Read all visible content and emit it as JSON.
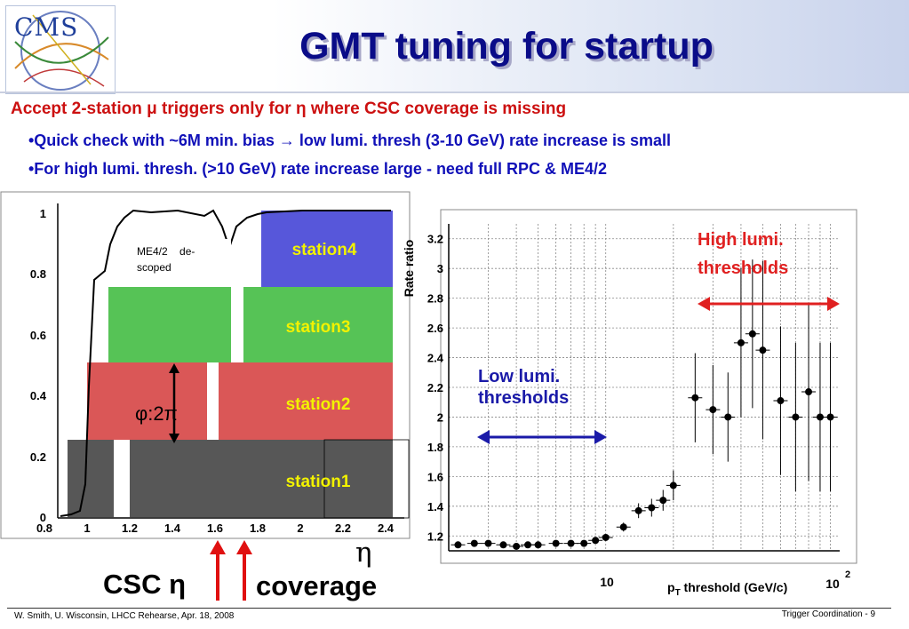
{
  "header": {
    "logo_text": "CMS",
    "title": "GMT tuning for startup"
  },
  "bullets": {
    "main": "Accept 2-station μ triggers only for η where CSC coverage is missing",
    "sub1": "•Quick check with ~6M min. bias → low lumi. thresh (3-10 GeV) rate increase is small",
    "sub2": "•For high lumi. thresh. (>10 GeV) rate increase large - need full RPC & ME4/2"
  },
  "left_plot": {
    "yticks": [
      "0",
      "0.2",
      "0.4",
      "0.6",
      "0.8",
      "1"
    ],
    "xticks": [
      "0.8",
      "1",
      "1.2",
      "1.4",
      "1.6",
      "1.8",
      "2",
      "2.2",
      "2.4"
    ],
    "stations": [
      "station1",
      "station2",
      "station3",
      "station4"
    ],
    "annotation": "ME4/2    de-\nscoped",
    "phi_label": "φ:2π",
    "colors": {
      "station1": "#444444",
      "station2": "#d43a3a",
      "station3": "#38b838",
      "station4": "#3a3ad4"
    }
  },
  "right_plot": {
    "ylabel": "Rate ratio",
    "xlabel": "p",
    "xlabel_sub": "T",
    "xlabel_rest": " threshold (GeV/c)",
    "yticks": [
      "1.2",
      "1.4",
      "1.6",
      "1.8",
      "2",
      "2.2",
      "2.4",
      "2.6",
      "2.8",
      "3",
      "3.2"
    ],
    "xtick_10": "10",
    "xtick_100": "10",
    "xtick_100_exp": "2",
    "low_label": "Low lumi.\nthresholds",
    "high_label": "High lumi.\nthresholds"
  },
  "bottom_labels": {
    "csc": "CSC η",
    "eta": "η",
    "coverage": "coverage"
  },
  "footer": {
    "left": "W. Smith, U. Wisconsin,  LHCC Rehearse, Apr. 18, 2008",
    "right": "Trigger Coordination -  9"
  },
  "chart_data": [
    {
      "type": "scatter",
      "title": "",
      "xlabel": "p_T threshold (GeV/c)",
      "ylabel": "Rate ratio",
      "xscale": "log",
      "xlim": [
        2,
        110
      ],
      "ylim": [
        1.1,
        3.3
      ],
      "grid": true,
      "series": [
        {
          "x": [
            2.2,
            2.6,
            3,
            3.5,
            4,
            4.5,
            5,
            6,
            7,
            8,
            9,
            10,
            12,
            14,
            16,
            18,
            20,
            25,
            30,
            35,
            40,
            45,
            50,
            60,
            70,
            80,
            90,
            100
          ],
          "y": [
            1.14,
            1.15,
            1.15,
            1.14,
            1.13,
            1.14,
            1.14,
            1.15,
            1.15,
            1.15,
            1.17,
            1.19,
            1.26,
            1.37,
            1.39,
            1.44,
            1.54,
            2.13,
            2.05,
            2.0,
            2.5,
            2.56,
            2.45,
            2.11,
            2.0,
            2.17,
            2.0,
            2.0
          ],
          "yerr": [
            0.01,
            0.01,
            0.01,
            0.01,
            0.01,
            0.01,
            0.01,
            0.01,
            0.01,
            0.01,
            0.02,
            0.02,
            0.03,
            0.05,
            0.06,
            0.07,
            0.1,
            0.3,
            0.3,
            0.3,
            0.5,
            0.5,
            0.6,
            0.5,
            0.5,
            0.6,
            0.5,
            0.5
          ]
        }
      ]
    }
  ]
}
